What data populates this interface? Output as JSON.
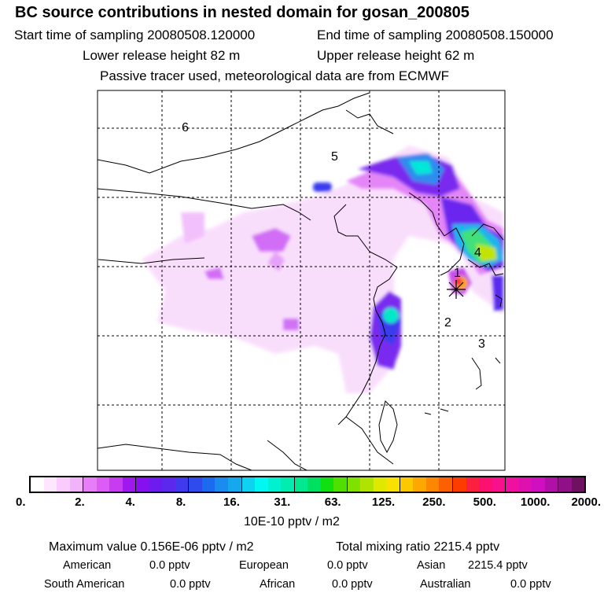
{
  "title": "BC  source contributions in nested domain for gosan_200805",
  "header": {
    "start_label": "Start time of sampling 20080508.120000",
    "end_label": "End time of sampling 20080508.150000",
    "lower_label": "Lower release height   82 m",
    "upper_label": "Upper release height   62 m",
    "tracer_label": "Passive tracer used, meteorological data are from ECMWF"
  },
  "map": {
    "region_labels": [
      "1",
      "2",
      "3",
      "4",
      "5",
      "6"
    ],
    "release_marker": "release-star"
  },
  "colorbar": {
    "unit": "10E-10 pptv / m2",
    "ticks": [
      "0.",
      "2.",
      "4.",
      "8.",
      "16.",
      "31.",
      "63.",
      "125.",
      "250.",
      "500.",
      "1000.",
      "2000."
    ],
    "colors": [
      "#ffffff",
      "#fde6fe",
      "#f9ccfd",
      "#f3b3fb",
      "#e77ef8",
      "#dc5cf5",
      "#c73cf0",
      "#9f19ee",
      "#8411ee",
      "#6c1cee",
      "#5d28ee",
      "#3f3aee",
      "#2f4bee",
      "#1c6bee",
      "#1a8cee",
      "#14a9ee",
      "#0fd2f0",
      "#00f8f0",
      "#00f0d0",
      "#00ecb0",
      "#00e890",
      "#00e060",
      "#10e010",
      "#50e000",
      "#80e000",
      "#b0e400",
      "#e0e800",
      "#f8e000",
      "#fcc800",
      "#fca800",
      "#fc8800",
      "#fc6000",
      "#fc3c00",
      "#fc2040",
      "#fc1070",
      "#f8108c",
      "#f010a0",
      "#e010b0",
      "#d010c0",
      "#b010a8",
      "#901088",
      "#701060"
    ]
  },
  "footer": {
    "max_label": "Maximum value  0.156E-06 pptv / m2",
    "total_label": "Total mixing ratio     2215.4 pptv",
    "american_label": "American",
    "american_value": "0.0 pptv",
    "european_label": "European",
    "european_value": "0.0 pptv",
    "asian_label": "Asian",
    "asian_value": "2215.4 pptv",
    "south_american_label": "South American",
    "south_american_value": "0.0 pptv",
    "african_label": "African",
    "african_value": "0.0 pptv",
    "australian_label": "Australian",
    "australian_value": "0.0 pptv"
  }
}
